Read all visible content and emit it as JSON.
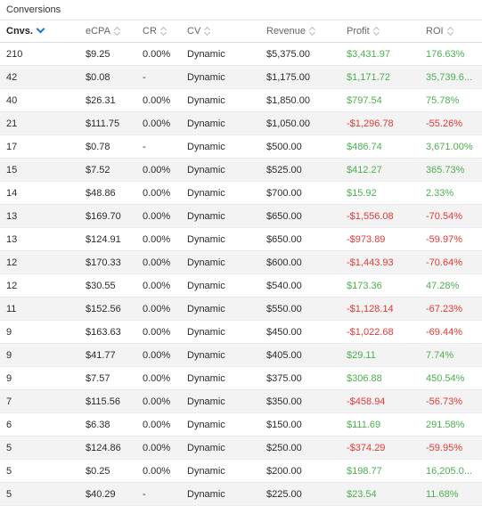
{
  "section_title": "Conversions",
  "colors": {
    "positive": "#4caf50",
    "negative": "#e53935",
    "accent": "#1976d2"
  },
  "columns": [
    {
      "label": "Cnvs.",
      "sort_icon": "chevron-down-icon"
    },
    {
      "label": "eCPA",
      "sort_icon": "sort-icon"
    },
    {
      "label": "CR",
      "sort_icon": "sort-icon"
    },
    {
      "label": "CV",
      "sort_icon": "sort-icon"
    },
    {
      "label": "Revenue",
      "sort_icon": "sort-icon"
    },
    {
      "label": "Profit",
      "sort_icon": "sort-icon"
    },
    {
      "label": "ROI",
      "sort_icon": "sort-icon"
    }
  ],
  "rows": [
    {
      "cnvs": "210",
      "ecpa": "$9.25",
      "cr": "0.00%",
      "cv": "Dynamic",
      "revenue": "$5,375.00",
      "profit": "$3,431.97",
      "roi": "176.63%",
      "sign": "pos"
    },
    {
      "cnvs": "42",
      "ecpa": "$0.08",
      "cr": "-",
      "cv": "Dynamic",
      "revenue": "$1,175.00",
      "profit": "$1,171.72",
      "roi": "35,739.6...",
      "sign": "pos"
    },
    {
      "cnvs": "40",
      "ecpa": "$26.31",
      "cr": "0.00%",
      "cv": "Dynamic",
      "revenue": "$1,850.00",
      "profit": "$797.54",
      "roi": "75.78%",
      "sign": "pos"
    },
    {
      "cnvs": "21",
      "ecpa": "$111.75",
      "cr": "0.00%",
      "cv": "Dynamic",
      "revenue": "$1,050.00",
      "profit": "-$1,296.78",
      "roi": "-55.26%",
      "sign": "neg"
    },
    {
      "cnvs": "17",
      "ecpa": "$0.78",
      "cr": "-",
      "cv": "Dynamic",
      "revenue": "$500.00",
      "profit": "$486.74",
      "roi": "3,671.00%",
      "sign": "pos"
    },
    {
      "cnvs": "15",
      "ecpa": "$7.52",
      "cr": "0.00%",
      "cv": "Dynamic",
      "revenue": "$525.00",
      "profit": "$412.27",
      "roi": "365.73%",
      "sign": "pos"
    },
    {
      "cnvs": "14",
      "ecpa": "$48.86",
      "cr": "0.00%",
      "cv": "Dynamic",
      "revenue": "$700.00",
      "profit": "$15.92",
      "roi": "2.33%",
      "sign": "pos"
    },
    {
      "cnvs": "13",
      "ecpa": "$169.70",
      "cr": "0.00%",
      "cv": "Dynamic",
      "revenue": "$650.00",
      "profit": "-$1,556.08",
      "roi": "-70.54%",
      "sign": "neg"
    },
    {
      "cnvs": "13",
      "ecpa": "$124.91",
      "cr": "0.00%",
      "cv": "Dynamic",
      "revenue": "$650.00",
      "profit": "-$973.89",
      "roi": "-59.97%",
      "sign": "neg"
    },
    {
      "cnvs": "12",
      "ecpa": "$170.33",
      "cr": "0.00%",
      "cv": "Dynamic",
      "revenue": "$600.00",
      "profit": "-$1,443.93",
      "roi": "-70.64%",
      "sign": "neg"
    },
    {
      "cnvs": "12",
      "ecpa": "$30.55",
      "cr": "0.00%",
      "cv": "Dynamic",
      "revenue": "$540.00",
      "profit": "$173.36",
      "roi": "47.28%",
      "sign": "pos"
    },
    {
      "cnvs": "11",
      "ecpa": "$152.56",
      "cr": "0.00%",
      "cv": "Dynamic",
      "revenue": "$550.00",
      "profit": "-$1,128.14",
      "roi": "-67.23%",
      "sign": "neg"
    },
    {
      "cnvs": "9",
      "ecpa": "$163.63",
      "cr": "0.00%",
      "cv": "Dynamic",
      "revenue": "$450.00",
      "profit": "-$1,022.68",
      "roi": "-69.44%",
      "sign": "neg"
    },
    {
      "cnvs": "9",
      "ecpa": "$41.77",
      "cr": "0.00%",
      "cv": "Dynamic",
      "revenue": "$405.00",
      "profit": "$29.11",
      "roi": "7.74%",
      "sign": "pos"
    },
    {
      "cnvs": "9",
      "ecpa": "$7.57",
      "cr": "0.00%",
      "cv": "Dynamic",
      "revenue": "$375.00",
      "profit": "$306.88",
      "roi": "450.54%",
      "sign": "pos"
    },
    {
      "cnvs": "7",
      "ecpa": "$115.56",
      "cr": "0.00%",
      "cv": "Dynamic",
      "revenue": "$350.00",
      "profit": "-$458.94",
      "roi": "-56.73%",
      "sign": "neg"
    },
    {
      "cnvs": "6",
      "ecpa": "$6.38",
      "cr": "0.00%",
      "cv": "Dynamic",
      "revenue": "$150.00",
      "profit": "$111.69",
      "roi": "291.58%",
      "sign": "pos"
    },
    {
      "cnvs": "5",
      "ecpa": "$124.86",
      "cr": "0.00%",
      "cv": "Dynamic",
      "revenue": "$250.00",
      "profit": "-$374.29",
      "roi": "-59.95%",
      "sign": "neg"
    },
    {
      "cnvs": "5",
      "ecpa": "$0.25",
      "cr": "0.00%",
      "cv": "Dynamic",
      "revenue": "$200.00",
      "profit": "$198.77",
      "roi": "16,205.0...",
      "sign": "pos"
    },
    {
      "cnvs": "5",
      "ecpa": "$40.29",
      "cr": "-",
      "cv": "Dynamic",
      "revenue": "$225.00",
      "profit": "$23.54",
      "roi": "11.68%",
      "sign": "pos"
    }
  ]
}
